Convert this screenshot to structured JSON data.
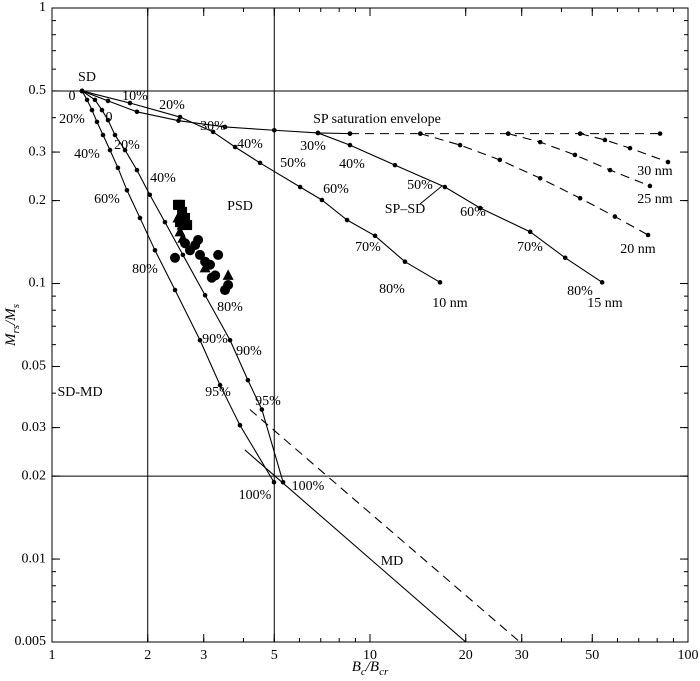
{
  "chart_data": {
    "type": "line",
    "x_label": [
      "B",
      "c",
      "/B",
      "cr"
    ],
    "y_label": [
      "M",
      "rs",
      "/M",
      "s"
    ],
    "xlim": [
      1,
      100
    ],
    "ylim": [
      0.005,
      1
    ],
    "log_x": true,
    "log_y": true,
    "xticks": [
      1,
      2,
      3,
      5,
      10,
      20,
      30,
      50,
      100
    ],
    "yticks": [
      0.005,
      0.01,
      0.02,
      0.03,
      0.05,
      0.1,
      0.2,
      0.3,
      0.5,
      1
    ],
    "region_lines": {
      "x": [
        2,
        5
      ],
      "y": [
        0.5,
        0.02
      ]
    },
    "series": [
      {
        "kind": "line",
        "style": "solid",
        "dots": true,
        "color": "#000",
        "x": [
          1.243,
          1.289,
          1.336,
          1.385,
          1.447,
          1.522,
          1.612,
          1.721,
          1.891,
          2.108,
          2.437,
          2.92,
          3.376,
          3.9,
          4.99
        ],
        "values": [
          0.5,
          0.464,
          0.426,
          0.386,
          0.346,
          0.305,
          0.263,
          0.218,
          0.173,
          0.132,
          0.0947,
          0.0623,
          0.0428,
          0.0306,
          0.019
        ]
      },
      {
        "kind": "line",
        "style": "solid",
        "dots": true,
        "color": "#000",
        "x": [
          1.243,
          1.365,
          1.436,
          1.5,
          1.578,
          1.697,
          1.85,
          2.03,
          2.266,
          2.58,
          3.03,
          3.63,
          4.13,
          4.57,
          5.33
        ],
        "values": [
          0.5,
          0.464,
          0.426,
          0.392,
          0.346,
          0.305,
          0.258,
          0.21,
          0.167,
          0.127,
          0.0907,
          0.0623,
          0.0446,
          0.0349,
          0.019
        ]
      },
      {
        "kind": "line",
        "style": "solid",
        "dots": false,
        "color": "#000",
        "x": [
          4.04,
          20
        ],
        "values": [
          0.0249,
          0.005
        ]
      },
      {
        "kind": "line",
        "style": "dashed",
        "dots": false,
        "color": "#000",
        "x": [
          4.19,
          29.6
        ],
        "values": [
          0.0349,
          0.005
        ]
      },
      {
        "kind": "line",
        "style": "solid",
        "dots": true,
        "color": "#000",
        "x": [
          1.243,
          1.5,
          1.85,
          2.5,
          3.5,
          5.0,
          6.86,
          8.65
        ],
        "values": [
          0.5,
          0.46,
          0.42,
          0.39,
          0.37,
          0.36,
          0.352,
          0.35
        ]
      },
      {
        "kind": "line",
        "style": "dashed",
        "dots": true,
        "color": "#000",
        "x": [
          8.65,
          14.4,
          27.2,
          45.8,
          81.7
        ],
        "values": [
          0.35,
          0.35,
          0.35,
          0.35,
          0.35
        ]
      },
      {
        "kind": "line",
        "style": "solid",
        "dots": true,
        "color": "#000",
        "x": [
          1.243,
          1.759,
          2.527,
          3.21,
          3.765,
          4.51,
          6.03,
          7.06,
          8.47,
          10.37,
          12.88,
          16.6
        ],
        "values": [
          0.5,
          0.452,
          0.402,
          0.355,
          0.313,
          0.274,
          0.224,
          0.201,
          0.17,
          0.149,
          0.12,
          0.101
        ]
      },
      {
        "kind": "line",
        "style": "solid",
        "dots": true,
        "color": "#000",
        "x": [
          6.86,
          8.65,
          11.98,
          17.2,
          22.2,
          31.9,
          41.1,
          53.7
        ],
        "values": [
          0.352,
          0.318,
          0.269,
          0.224,
          0.188,
          0.154,
          0.124,
          0.101
        ]
      },
      {
        "kind": "line",
        "style": "dashed",
        "dots": true,
        "color": "#000",
        "x": [
          14.4,
          19.2,
          25.6,
          34.3,
          45.8,
          58.9,
          74.9
        ],
        "values": [
          0.35,
          0.318,
          0.281,
          0.241,
          0.204,
          0.175,
          0.15
        ]
      },
      {
        "kind": "line",
        "style": "dashed",
        "dots": true,
        "color": "#000",
        "x": [
          27.2,
          34.3,
          44.1,
          56.9,
          75.9
        ],
        "values": [
          0.35,
          0.326,
          0.293,
          0.258,
          0.226
        ]
      },
      {
        "kind": "line",
        "style": "dashed",
        "dots": true,
        "color": "#000",
        "x": [
          45.8,
          54.8,
          65.7,
          86.5
        ],
        "values": [
          0.35,
          0.332,
          0.31,
          0.276
        ]
      },
      {
        "kind": "scatter",
        "marker": "square",
        "color": "#000",
        "x": [
          2.527,
          2.565,
          2.62,
          2.66,
          2.527,
          2.49
        ],
        "values": [
          0.193,
          0.182,
          0.173,
          0.163,
          0.167,
          0.193
        ]
      },
      {
        "kind": "scatter",
        "marker": "triangle",
        "color": "#000",
        "x": [
          2.49,
          2.527,
          2.58,
          3.03,
          3.58,
          2.565
        ],
        "values": [
          0.173,
          0.154,
          0.146,
          0.114,
          0.107,
          0.163
        ]
      },
      {
        "kind": "scatter",
        "marker": "circle",
        "color": "#000",
        "x": [
          2.437,
          2.62,
          2.716,
          2.82,
          2.92,
          3.03,
          3.14,
          3.26,
          3.33,
          3.5,
          3.58,
          3.18,
          2.88
        ],
        "values": [
          0.124,
          0.14,
          0.132,
          0.138,
          0.127,
          0.12,
          0.117,
          0.107,
          0.127,
          0.0947,
          0.0988,
          0.105,
          0.144
        ]
      }
    ],
    "annotations": [
      "SD",
      "0",
      "10%",
      "20%",
      "20%",
      "0",
      "30%",
      "20%",
      "40%",
      "40%",
      "50%",
      "SP saturation envelope",
      "30%",
      "40%",
      "50%",
      "60%",
      "40%",
      "60%",
      "PSD",
      "SP–SD",
      "60%",
      "70%",
      "70%",
      "80%",
      "80%",
      "10 nm",
      "80%",
      "15 nm",
      "20 nm",
      "25 nm",
      "30 nm",
      "80%",
      "90%",
      "90%",
      "SD-MD",
      "95%",
      "95%",
      "100%",
      "100%",
      "MD"
    ]
  }
}
